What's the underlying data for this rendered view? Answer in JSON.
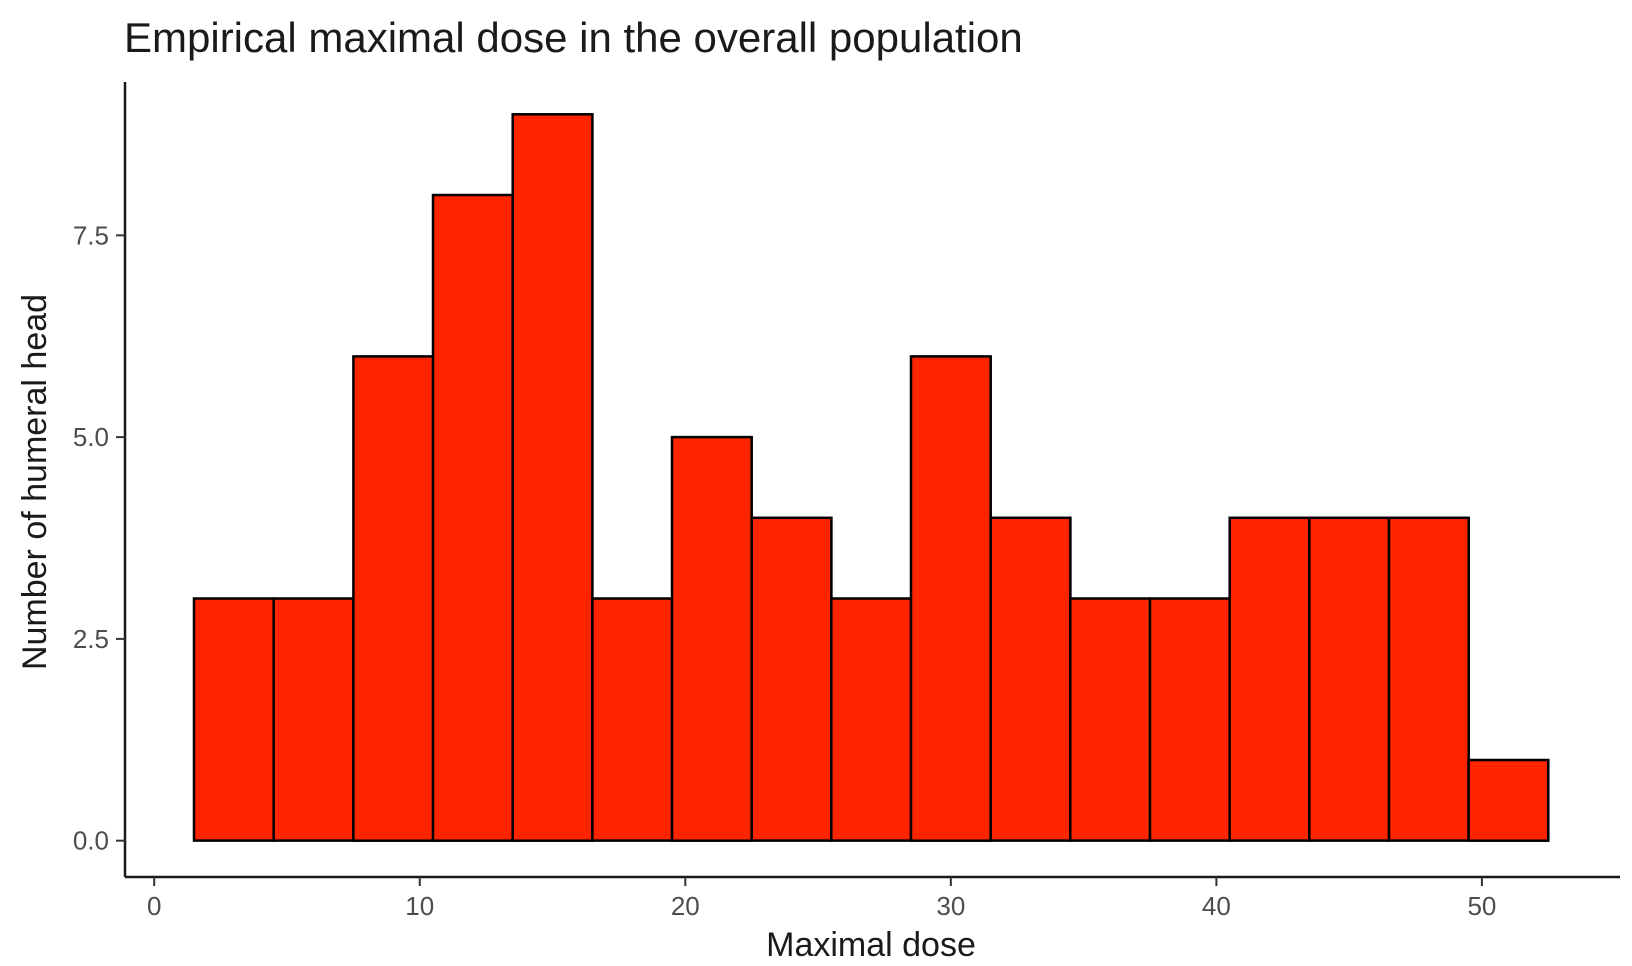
{
  "chart_data": {
    "type": "bar",
    "subtype": "histogram",
    "title": "Empirical maximal dose in the overall population",
    "xlabel": "Maximal dose",
    "ylabel": "Number of humeral head",
    "bin_width": 3,
    "bins": [
      {
        "start": 1.5,
        "end": 4.5,
        "count": 3
      },
      {
        "start": 4.5,
        "end": 7.5,
        "count": 3
      },
      {
        "start": 7.5,
        "end": 10.5,
        "count": 6
      },
      {
        "start": 10.5,
        "end": 13.5,
        "count": 8
      },
      {
        "start": 13.5,
        "end": 16.5,
        "count": 9
      },
      {
        "start": 16.5,
        "end": 19.5,
        "count": 3
      },
      {
        "start": 19.5,
        "end": 22.5,
        "count": 5
      },
      {
        "start": 22.5,
        "end": 25.5,
        "count": 4
      },
      {
        "start": 25.5,
        "end": 28.5,
        "count": 3
      },
      {
        "start": 28.5,
        "end": 31.5,
        "count": 6
      },
      {
        "start": 31.5,
        "end": 34.5,
        "count": 4
      },
      {
        "start": 34.5,
        "end": 37.5,
        "count": 3
      },
      {
        "start": 37.5,
        "end": 40.5,
        "count": 3
      },
      {
        "start": 40.5,
        "end": 43.5,
        "count": 4
      },
      {
        "start": 43.5,
        "end": 46.5,
        "count": 4
      },
      {
        "start": 46.5,
        "end": 49.5,
        "count": 4
      },
      {
        "start": 49.5,
        "end": 52.5,
        "count": 1
      }
    ],
    "xlim": [
      -1.1,
      55.2
    ],
    "ylim": [
      -0.45,
      9.4
    ],
    "xticks": [
      0,
      10,
      20,
      30,
      40,
      50
    ],
    "xtick_labels": [
      "0",
      "10",
      "20",
      "30",
      "40",
      "50"
    ],
    "yticks": [
      0,
      2.5,
      5,
      7.5
    ],
    "ytick_labels": [
      "0.0",
      "2.5",
      "5.0",
      "7.5"
    ],
    "grid": false,
    "legend": "none",
    "colors": {
      "bar_fill": "#ff2400",
      "bar_outline": "#000000"
    }
  }
}
